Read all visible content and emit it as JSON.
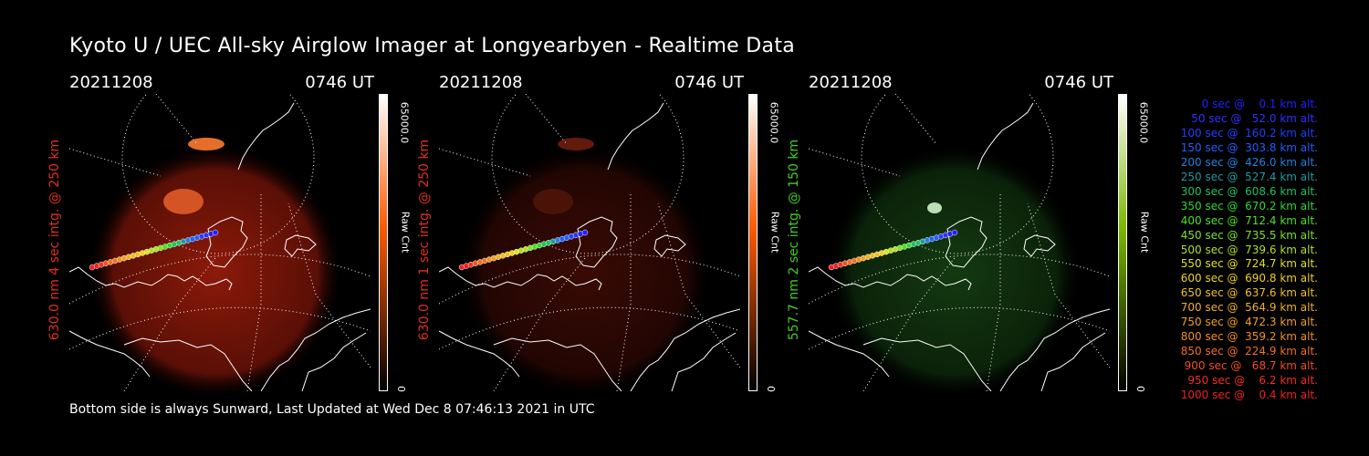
{
  "title": "Kyoto U / UEC All-sky Airglow Imager at Longyearbyen - Realtime Data",
  "panels": [
    {
      "date": "20211208",
      "time": "0746 UT",
      "label": "630.0 nm 4 sec intg. @ 250 km",
      "label_color": "#e03020",
      "colorbar_max": "65000.0",
      "colorbar_units": "Raw Cnt",
      "colorbar_min": "0",
      "colorbar_top": "#ffffff",
      "colorbar_mid": "#ff5a00",
      "colorbar_bottom": "#000000",
      "image_tint": "red-bright"
    },
    {
      "date": "20211208",
      "time": "0746 UT",
      "label": "630.0 nm 1 sec intg. @ 250 km",
      "label_color": "#e03020",
      "colorbar_max": "65000.0",
      "colorbar_units": "Raw Cnt",
      "colorbar_min": "0",
      "colorbar_top": "#ffffff",
      "colorbar_mid": "#ff5a00",
      "colorbar_bottom": "#000000",
      "image_tint": "red-dim"
    },
    {
      "date": "20211208",
      "time": "0746 UT",
      "label": "557.7 nm 2 sec intg. @ 150 km",
      "label_color": "#40d020",
      "colorbar_max": "65000.0",
      "colorbar_units": "Raw Cnt",
      "colorbar_min": "0",
      "colorbar_top": "#ffffff",
      "colorbar_mid": "#7ab800",
      "colorbar_bottom": "#000000",
      "image_tint": "green"
    }
  ],
  "footer": "Bottom side is always Sunward, Last Updated at Wed Dec  8 07:46:13 2021 in UTC",
  "trajectory_legend": [
    {
      "text": "   0 sec @    0.1 km alt.",
      "color": "#2020ff"
    },
    {
      "text": "  50 sec @   52.0 km alt.",
      "color": "#3030ff"
    },
    {
      "text": " 100 sec @  160.2 km alt.",
      "color": "#2040ff"
    },
    {
      "text": " 150 sec @  303.8 km alt.",
      "color": "#2060ff"
    },
    {
      "text": " 200 sec @  426.0 km alt.",
      "color": "#2080e0"
    },
    {
      "text": " 250 sec @  527.4 km alt.",
      "color": "#1e9aa0"
    },
    {
      "text": " 300 sec @  608.6 km alt.",
      "color": "#20c060"
    },
    {
      "text": " 350 sec @  670.2 km alt.",
      "color": "#30d830"
    },
    {
      "text": " 400 sec @  712.4 km alt.",
      "color": "#50e020"
    },
    {
      "text": " 450 sec @  735.5 km alt.",
      "color": "#80e020"
    },
    {
      "text": " 500 sec @  739.6 km alt.",
      "color": "#b0e020"
    },
    {
      "text": " 550 sec @  724.7 km alt.",
      "color": "#e0e020"
    },
    {
      "text": " 600 sec @  690.8 km alt.",
      "color": "#f0d020"
    },
    {
      "text": " 650 sec @  637.6 km alt.",
      "color": "#f0c020"
    },
    {
      "text": " 700 sec @  564.9 km alt.",
      "color": "#f0b020"
    },
    {
      "text": " 750 sec @  472.3 km alt.",
      "color": "#f0a020"
    },
    {
      "text": " 800 sec @  359.2 km alt.",
      "color": "#f09020"
    },
    {
      "text": " 850 sec @  224.9 km alt.",
      "color": "#f07020"
    },
    {
      "text": " 900 sec @   68.7 km alt.",
      "color": "#f05020"
    },
    {
      "text": " 950 sec @    6.2 km alt.",
      "color": "#f03020"
    },
    {
      "text": "1000 sec @    0.4 km alt.",
      "color": "#f02020"
    }
  ]
}
